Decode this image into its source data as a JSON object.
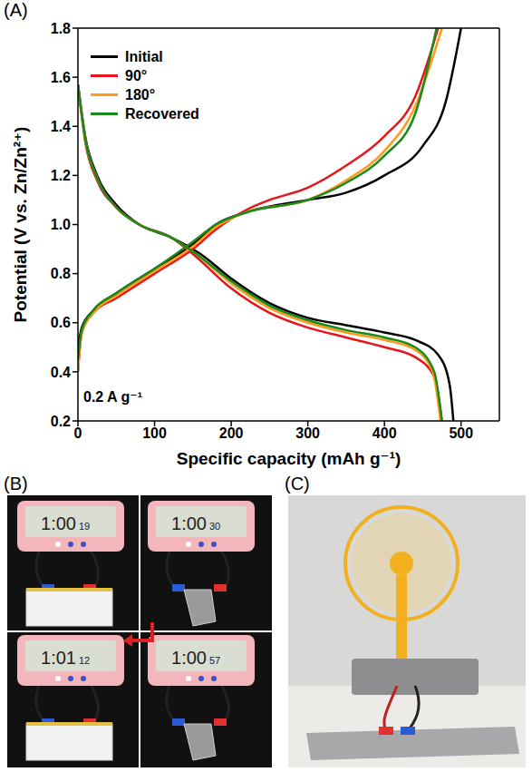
{
  "chart_data": {
    "type": "line",
    "panel_label": "(A)",
    "x_label": "Specific capacity (mAh g⁻¹)",
    "y_label": "Potential (V vs. Zn/Zn²⁺)",
    "annotation": "0.2 A g⁻¹",
    "xlim": [
      0,
      550
    ],
    "xticks": [
      0,
      100,
      200,
      300,
      400,
      500
    ],
    "ylim": [
      0.2,
      1.8
    ],
    "yticks": [
      0.2,
      0.4,
      0.6,
      0.8,
      {
        "value": 1,
        "label": "1.0"
      },
      1.2,
      1.4,
      1.6,
      1.8
    ],
    "legend": "upper left",
    "series": [
      {
        "name": "Initial",
        "color": "#000000",
        "x": [
          0,
          10,
          25,
          50,
          80,
          120,
          160,
          200,
          250,
          300,
          350,
          400,
          440,
          470,
          485,
          490,
          490,
          0,
          5,
          20,
          50,
          100,
          150,
          180,
          220,
          300,
          350,
          400,
          450,
          480,
          500
        ],
        "values": [
          1.57,
          1.35,
          1.2,
          1.08,
          1.0,
          0.95,
          0.88,
          0.78,
          0.68,
          0.62,
          0.59,
          0.56,
          0.53,
          0.47,
          0.35,
          0.2,
          null,
          0.5,
          0.58,
          0.65,
          0.72,
          0.82,
          0.92,
          1.0,
          1.05,
          1.1,
          1.13,
          1.2,
          1.32,
          1.5,
          1.8
        ]
      },
      {
        "name": "90°",
        "color": "#e8141b",
        "x": [
          0,
          10,
          25,
          50,
          80,
          120,
          150,
          200,
          250,
          300,
          350,
          400,
          440,
          465,
          475,
          475,
          0,
          5,
          20,
          50,
          100,
          150,
          180,
          220,
          250,
          300,
          350,
          400,
          440,
          470
        ],
        "values": [
          1.57,
          1.33,
          1.18,
          1.07,
          1.0,
          0.95,
          0.88,
          0.74,
          0.64,
          0.58,
          0.54,
          0.5,
          0.46,
          0.38,
          0.2,
          null,
          0.4,
          0.56,
          0.64,
          0.7,
          0.8,
          0.9,
          0.98,
          1.06,
          1.1,
          1.15,
          1.24,
          1.36,
          1.52,
          1.8
        ]
      },
      {
        "name": "180°",
        "color": "#ff9a1a",
        "x": [
          0,
          10,
          25,
          50,
          80,
          120,
          150,
          200,
          250,
          300,
          350,
          400,
          440,
          463,
          473,
          473,
          0,
          5,
          20,
          50,
          100,
          150,
          180,
          220,
          300,
          350,
          400,
          440,
          475
        ],
        "values": [
          1.57,
          1.34,
          1.19,
          1.07,
          1.0,
          0.95,
          0.89,
          0.76,
          0.66,
          0.6,
          0.56,
          0.53,
          0.49,
          0.4,
          0.2,
          null,
          0.4,
          0.56,
          0.64,
          0.71,
          0.81,
          0.91,
          0.99,
          1.05,
          1.1,
          1.18,
          1.3,
          1.48,
          1.8
        ]
      },
      {
        "name": "Recovered",
        "color": "#1a8a1a",
        "x": [
          0,
          10,
          25,
          50,
          80,
          120,
          150,
          200,
          250,
          300,
          350,
          400,
          440,
          465,
          475,
          475,
          0,
          5,
          20,
          50,
          100,
          150,
          180,
          220,
          300,
          350,
          400,
          440,
          468
        ],
        "values": [
          1.57,
          1.34,
          1.19,
          1.07,
          1.0,
          0.95,
          0.89,
          0.77,
          0.67,
          0.61,
          0.57,
          0.54,
          0.5,
          0.4,
          0.2,
          null,
          0.45,
          0.57,
          0.65,
          0.72,
          0.82,
          0.93,
          1.0,
          1.05,
          1.1,
          1.17,
          1.28,
          1.45,
          1.8
        ]
      }
    ]
  },
  "photos": {
    "B": {
      "label": "(B)",
      "clocks": [
        {
          "display": "1:00",
          "seconds": "19"
        },
        {
          "display": "1:00",
          "seconds": "30"
        },
        {
          "display": "1:01",
          "seconds": "12"
        },
        {
          "display": "1:00",
          "seconds": "57"
        }
      ]
    },
    "C": {
      "label": "(C)"
    }
  }
}
